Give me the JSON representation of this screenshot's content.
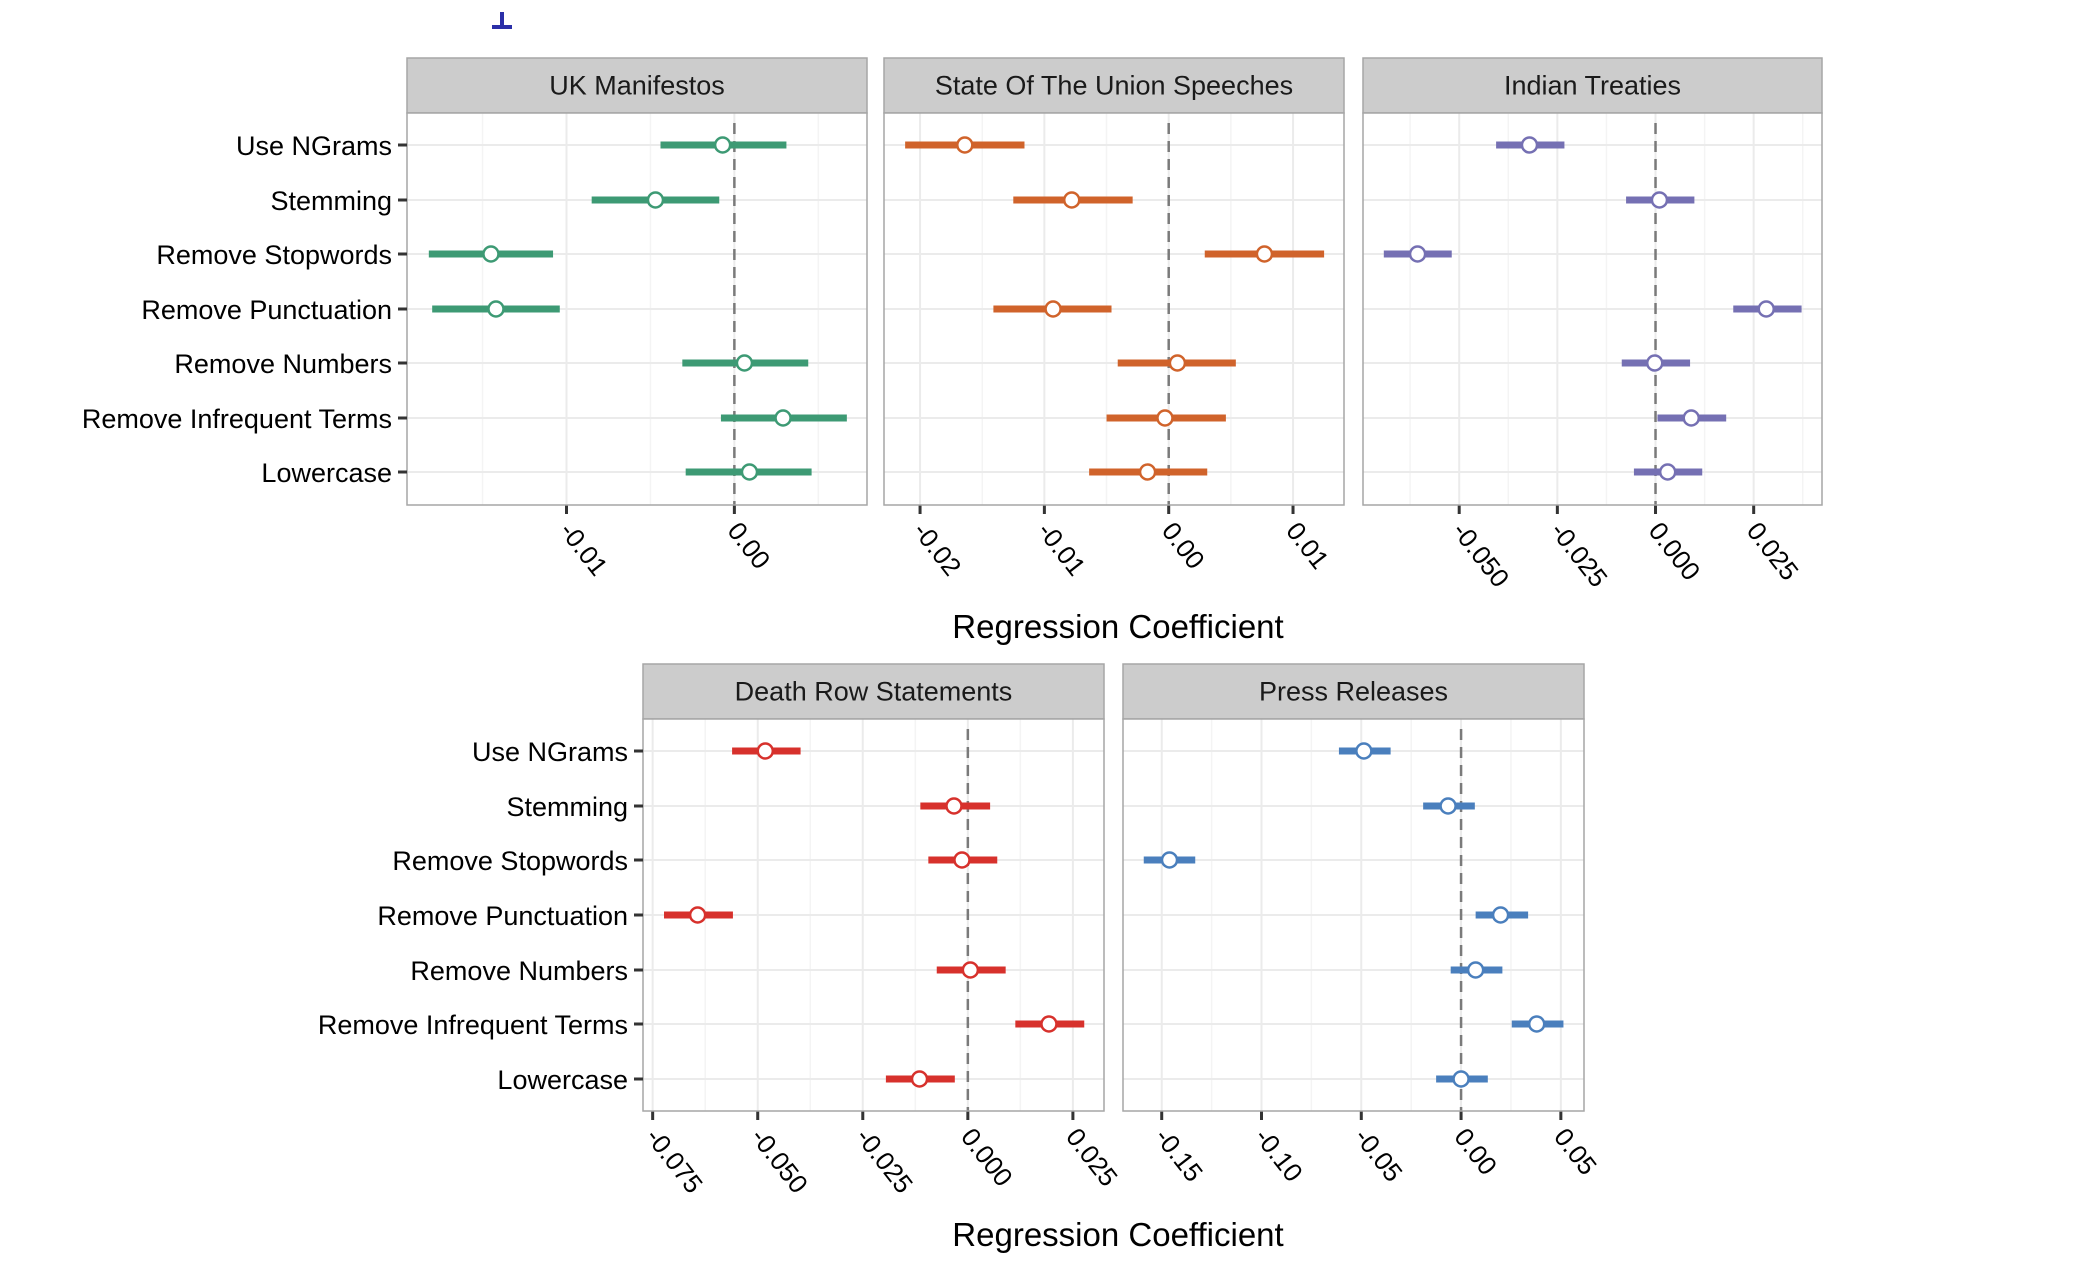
{
  "figure": {
    "xlabels": [
      "Regression Coefficient",
      "Regression Coefficient"
    ],
    "mark_color": "#2b2fa8"
  },
  "chart_data": [
    {
      "type": "errorbar",
      "title": "UK Manifestos",
      "color": "#3d9a74",
      "categories": [
        "Use NGrams",
        "Stemming",
        "Remove Stopwords",
        "Remove Punctuation",
        "Remove Numbers",
        "Remove Infrequent Terms",
        "Lowercase"
      ],
      "estimate": [
        -0.0007,
        -0.0047,
        -0.0145,
        -0.0142,
        0.0006,
        0.0029,
        0.0009
      ],
      "lower": [
        -0.0044,
        -0.0085,
        -0.0182,
        -0.018,
        -0.0031,
        -0.0008,
        -0.0029
      ],
      "upper": [
        0.0031,
        -0.0009,
        -0.0108,
        -0.0104,
        0.0044,
        0.0067,
        0.0046
      ],
      "xlim": [
        -0.0195,
        0.0079
      ],
      "xticks": [
        -0.01,
        0.0
      ],
      "xtick_labels": [
        "-0.01",
        "0.00"
      ],
      "reference_line": 0,
      "grid": true
    },
    {
      "type": "errorbar",
      "title": "State Of The Union Speeches",
      "color": "#d0632b",
      "categories": [
        "Use NGrams",
        "Stemming",
        "Remove Stopwords",
        "Remove Punctuation",
        "Remove Numbers",
        "Remove Infrequent Terms",
        "Lowercase"
      ],
      "estimate": [
        -0.0164,
        -0.0078,
        0.0077,
        -0.0093,
        0.0007,
        -0.0003,
        -0.0017
      ],
      "lower": [
        -0.0212,
        -0.0125,
        0.0029,
        -0.0141,
        -0.0041,
        -0.005,
        -0.0064
      ],
      "upper": [
        -0.0116,
        -0.0029,
        0.0125,
        -0.0046,
        0.0054,
        0.0046,
        0.0031
      ],
      "xlim": [
        -0.0229,
        0.0141
      ],
      "xticks": [
        -0.02,
        -0.01,
        0.0,
        0.01
      ],
      "xtick_labels": [
        "-0.02",
        "-0.01",
        "0.00",
        "0.01"
      ],
      "reference_line": 0,
      "grid": true
    },
    {
      "type": "errorbar",
      "title": "Indian Treaties",
      "color": "#7570b3",
      "categories": [
        "Use NGrams",
        "Stemming",
        "Remove Stopwords",
        "Remove Punctuation",
        "Remove Numbers",
        "Remove Infrequent Terms",
        "Lowercase"
      ],
      "estimate": [
        -0.0321,
        0.001,
        -0.0606,
        0.0282,
        -0.0002,
        0.0091,
        0.0031
      ],
      "lower": [
        -0.0406,
        -0.0075,
        -0.0692,
        0.0198,
        -0.0086,
        0.0005,
        -0.0055
      ],
      "upper": [
        -0.0232,
        0.0099,
        -0.0519,
        0.0372,
        0.0088,
        0.018,
        0.0119
      ],
      "xlim": [
        -0.0745,
        0.0424
      ],
      "xticks": [
        -0.05,
        -0.025,
        0.0,
        0.025
      ],
      "xtick_labels": [
        "-0.050",
        "-0.025",
        "0.000",
        "0.025"
      ],
      "reference_line": 0,
      "grid": true
    },
    {
      "type": "errorbar",
      "title": "Death Row Statements",
      "color": "#d7312c",
      "categories": [
        "Use NGrams",
        "Stemming",
        "Remove Stopwords",
        "Remove Punctuation",
        "Remove Numbers",
        "Remove Infrequent Terms",
        "Lowercase"
      ],
      "estimate": [
        -0.0482,
        -0.0033,
        -0.0014,
        -0.0643,
        0.0006,
        0.0193,
        -0.0115
      ],
      "lower": [
        -0.0561,
        -0.0113,
        -0.0094,
        -0.0723,
        -0.0074,
        0.0113,
        -0.0195
      ],
      "upper": [
        -0.0398,
        0.0053,
        0.007,
        -0.0559,
        0.009,
        0.0277,
        -0.0031
      ],
      "xlim": [
        -0.0773,
        0.0324
      ],
      "xticks": [
        -0.075,
        -0.05,
        -0.025,
        0.0,
        0.025
      ],
      "xtick_labels": [
        "-0.075",
        "-0.050",
        "-0.025",
        "0.000",
        "0.025"
      ],
      "reference_line": 0,
      "grid": true
    },
    {
      "type": "errorbar",
      "title": "Press Releases",
      "color": "#4a7fbd",
      "categories": [
        "Use NGrams",
        "Stemming",
        "Remove Stopwords",
        "Remove Punctuation",
        "Remove Numbers",
        "Remove Infrequent Terms",
        "Lowercase"
      ],
      "estimate": [
        -0.0487,
        -0.0065,
        -0.1461,
        0.0198,
        0.0073,
        0.0379,
        0.0
      ],
      "lower": [
        -0.0612,
        -0.019,
        -0.159,
        0.0073,
        -0.0052,
        0.0254,
        -0.0125
      ],
      "upper": [
        -0.0353,
        0.0069,
        -0.1332,
        0.0336,
        0.0207,
        0.0513,
        0.0134
      ],
      "xlim": [
        -0.1694,
        0.0616
      ],
      "xticks": [
        -0.15,
        -0.1,
        -0.05,
        0.0,
        0.05
      ],
      "xtick_labels": [
        "-0.15",
        "-0.10",
        "-0.05",
        "0.00",
        "0.05"
      ],
      "reference_line": 0,
      "grid": true
    }
  ]
}
